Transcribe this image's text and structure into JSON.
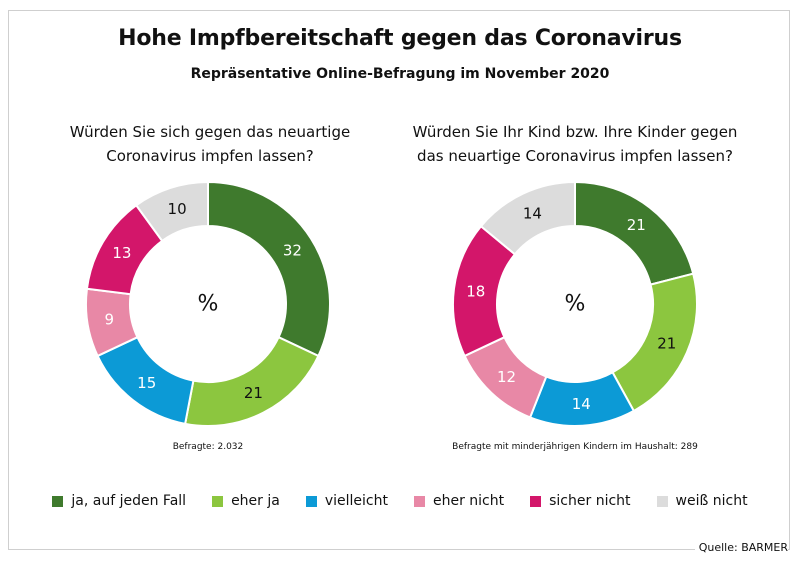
{
  "title": "Hohe Impfbereitschaft gegen das Coronavirus",
  "subtitle": "Repräsentative Online-Befragung im November 2020",
  "source": "Quelle: BARMER",
  "colors": {
    "ja, auf jeden Fall": "#3f7a2d",
    "eher ja": "#8cc63f",
    "vielleicht": "#0c9ad6",
    "eher nicht": "#e888a6",
    "sicher nicht": "#d3166a",
    "weiß nicht": "#dcdcdc"
  },
  "chart_data": [
    {
      "type": "pie",
      "donut": true,
      "title": "Würden Sie sich gegen das neuartige Coronavirus impfen lassen?",
      "title_lines": [
        "Würden Sie sich gegen das neuartige",
        "Coronavirus impfen lassen?"
      ],
      "center_label": "%",
      "note": "Befragte: 2.032",
      "categories": [
        "ja, auf jeden Fall",
        "eher ja",
        "vielleicht",
        "eher nicht",
        "sicher nicht",
        "weiß nicht"
      ],
      "values": [
        32,
        21,
        15,
        9,
        13,
        10
      ],
      "value_labels": [
        "32",
        "21",
        "15",
        "9",
        "13",
        "10"
      ]
    },
    {
      "type": "pie",
      "donut": true,
      "title": "Würden Sie Ihr Kind bzw. Ihre Kinder gegen das neuartige Coronavirus impfen lassen?",
      "title_lines": [
        "Würden Sie Ihr Kind bzw. Ihre Kinder gegen",
        "das neuartige Coronavirus impfen lassen?"
      ],
      "center_label": "%",
      "note": "Befragte mit minderjährigen Kindern im Haushalt: 289",
      "categories": [
        "ja, auf jeden Fall",
        "eher ja",
        "vielleicht",
        "eher nicht",
        "sicher nicht",
        "weiß nicht"
      ],
      "values": [
        21,
        21,
        14,
        12,
        18,
        14
      ],
      "value_labels": [
        "21",
        "21",
        "14",
        "12",
        "18",
        "14"
      ]
    }
  ],
  "legend": {
    "placement": "bottom",
    "items": [
      "ja, auf jeden Fall",
      "eher ja",
      "vielleicht",
      "eher nicht",
      "sicher nicht",
      "weiß nicht"
    ]
  }
}
